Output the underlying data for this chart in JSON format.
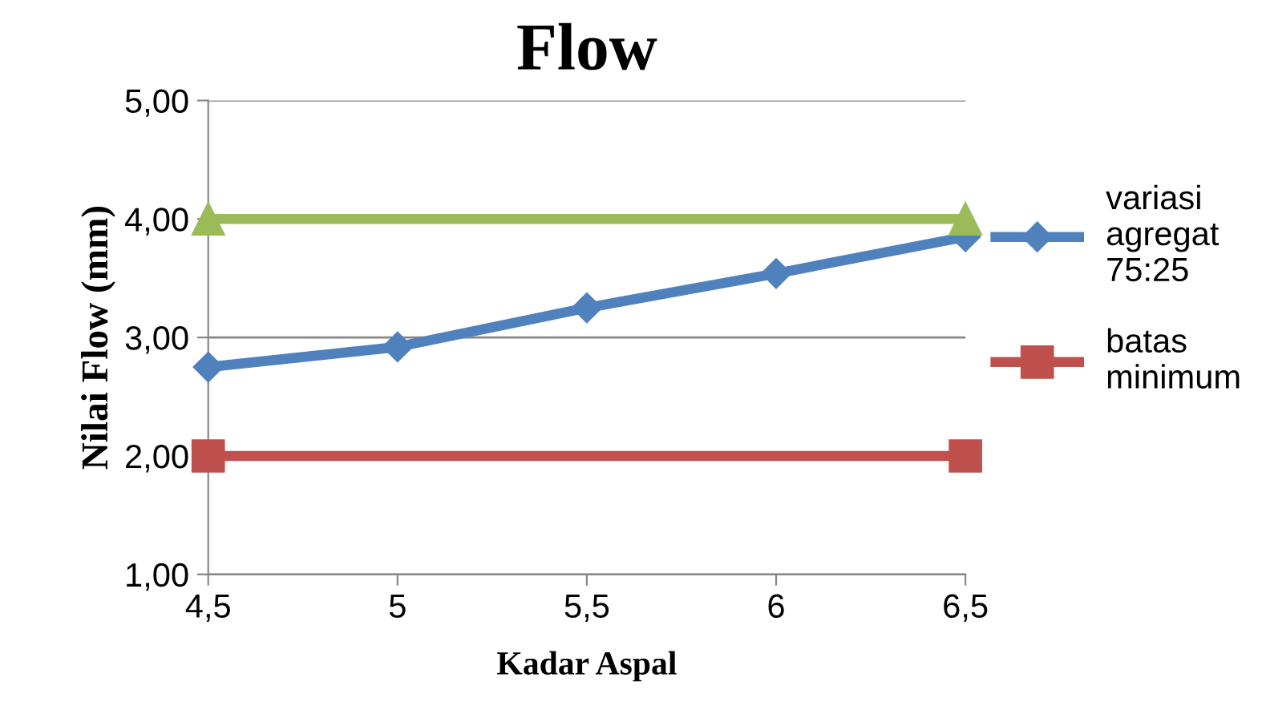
{
  "chart_data": {
    "type": "line",
    "title": "Flow",
    "xlabel": "Kadar Aspal",
    "ylabel": "Nilai Flow (mm)",
    "xlim": [
      4.5,
      6.5
    ],
    "xticks": [
      {
        "value": 4.5,
        "label": "4,5"
      },
      5,
      {
        "value": 5.5,
        "label": "5,5"
      },
      6,
      {
        "value": 6.5,
        "label": "6,5"
      }
    ],
    "ylim": [
      1,
      5
    ],
    "yticks": [
      {
        "value": 1,
        "label": "1,00"
      },
      {
        "value": 2,
        "label": "2,00"
      },
      {
        "value": 3,
        "label": "3,00"
      },
      {
        "value": 4,
        "label": "4,00"
      },
      {
        "value": 5,
        "label": "5,00"
      }
    ],
    "grid": "y",
    "legend": "right",
    "series": [
      {
        "name": "variasi agregat 75:25",
        "color": "#4f81bd",
        "marker": "diamond",
        "x": [
          4.5,
          5,
          5.5,
          6,
          6.5
        ],
        "values": [
          2.75,
          2.92,
          3.25,
          3.54,
          3.85
        ]
      },
      {
        "name": "batas minimum",
        "color": "#c0504d",
        "marker": "square",
        "x": [
          4.5,
          6.5
        ],
        "values": [
          2,
          2
        ]
      },
      {
        "color": "#9bbb59",
        "marker": "triangle",
        "x": [
          4.5,
          6.5
        ],
        "values": [
          4,
          4
        ]
      }
    ]
  }
}
